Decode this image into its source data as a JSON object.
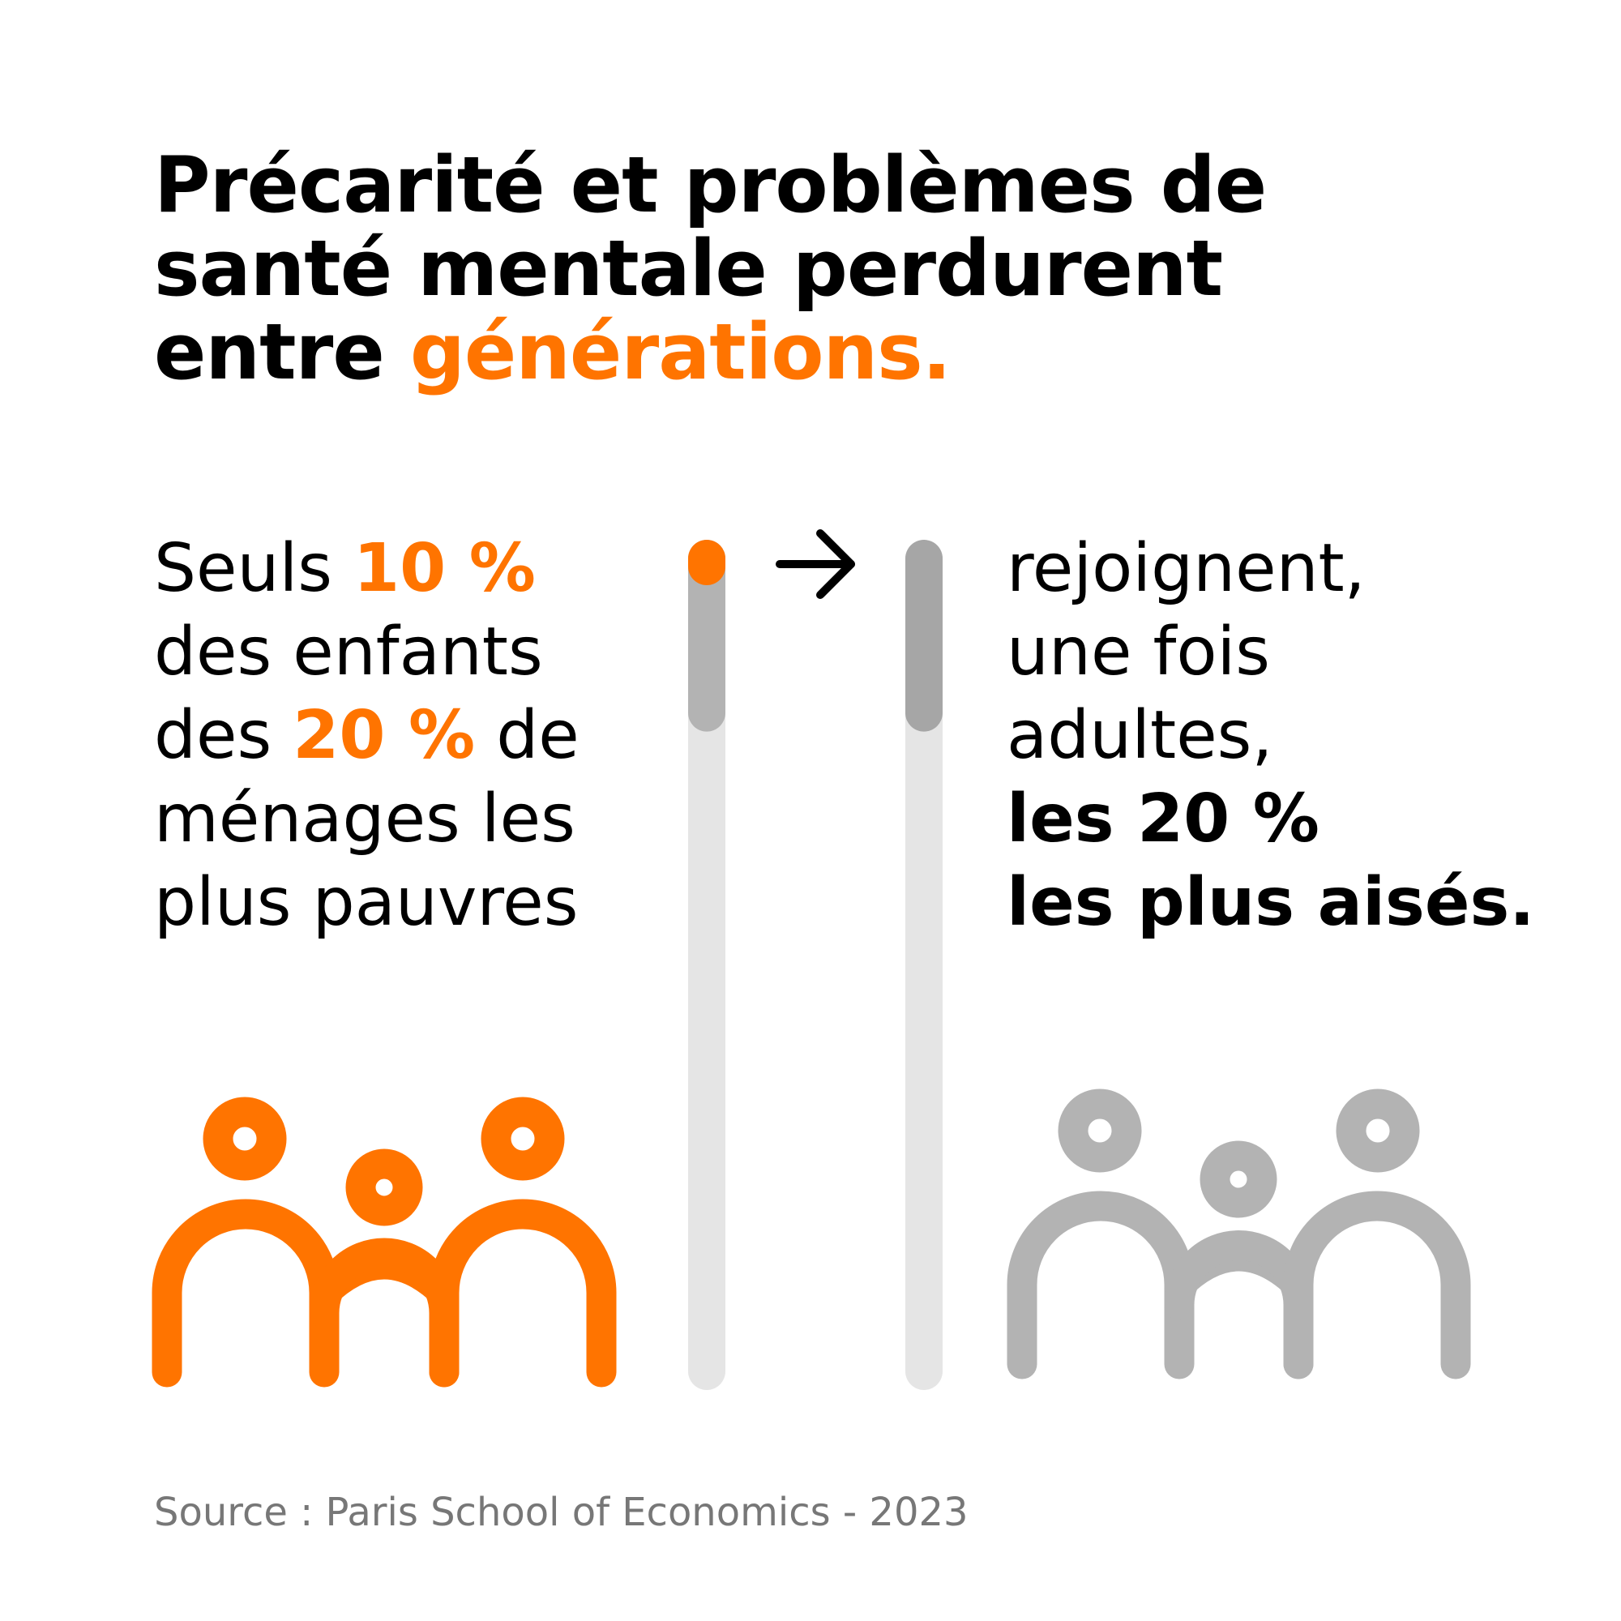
{
  "title": {
    "line1": "Précarité et problèmes de",
    "line2": "santé mentale perdurent",
    "line3_prefix": "entre ",
    "line3_accent": "générations."
  },
  "left_text": {
    "line1_prefix": "Seuls ",
    "line1_accent": "10 %",
    "line2": "des enfants",
    "line3_prefix": "des ",
    "line3_accent": "20 %",
    "line3_suffix": " de",
    "line4": "ménages les",
    "line5": "plus pauvres"
  },
  "right_text": {
    "line1": "rejoignent,",
    "line2": "une fois",
    "line3": "adultes,",
    "line4": "les 20 %",
    "line5": "les plus aisés."
  },
  "arrow_icon": "arrow-right-icon",
  "bars": {
    "left": {
      "segment_share": 0.2,
      "highlight_share": 0.1
    },
    "right": {
      "segment_share": 0.2
    }
  },
  "icons": {
    "left_group": "family-icon",
    "right_group": "family-icon"
  },
  "source": "Source : Paris School of Economics - 2023",
  "colors": {
    "accent": "#ff7400",
    "bar_light": "#e5e5e5",
    "bar_mid_left": "#b3b3b3",
    "bar_mid_right": "#a6a6a6",
    "figure_grey": "#b3b3b3",
    "text": "#000000",
    "source_text": "#777777"
  }
}
